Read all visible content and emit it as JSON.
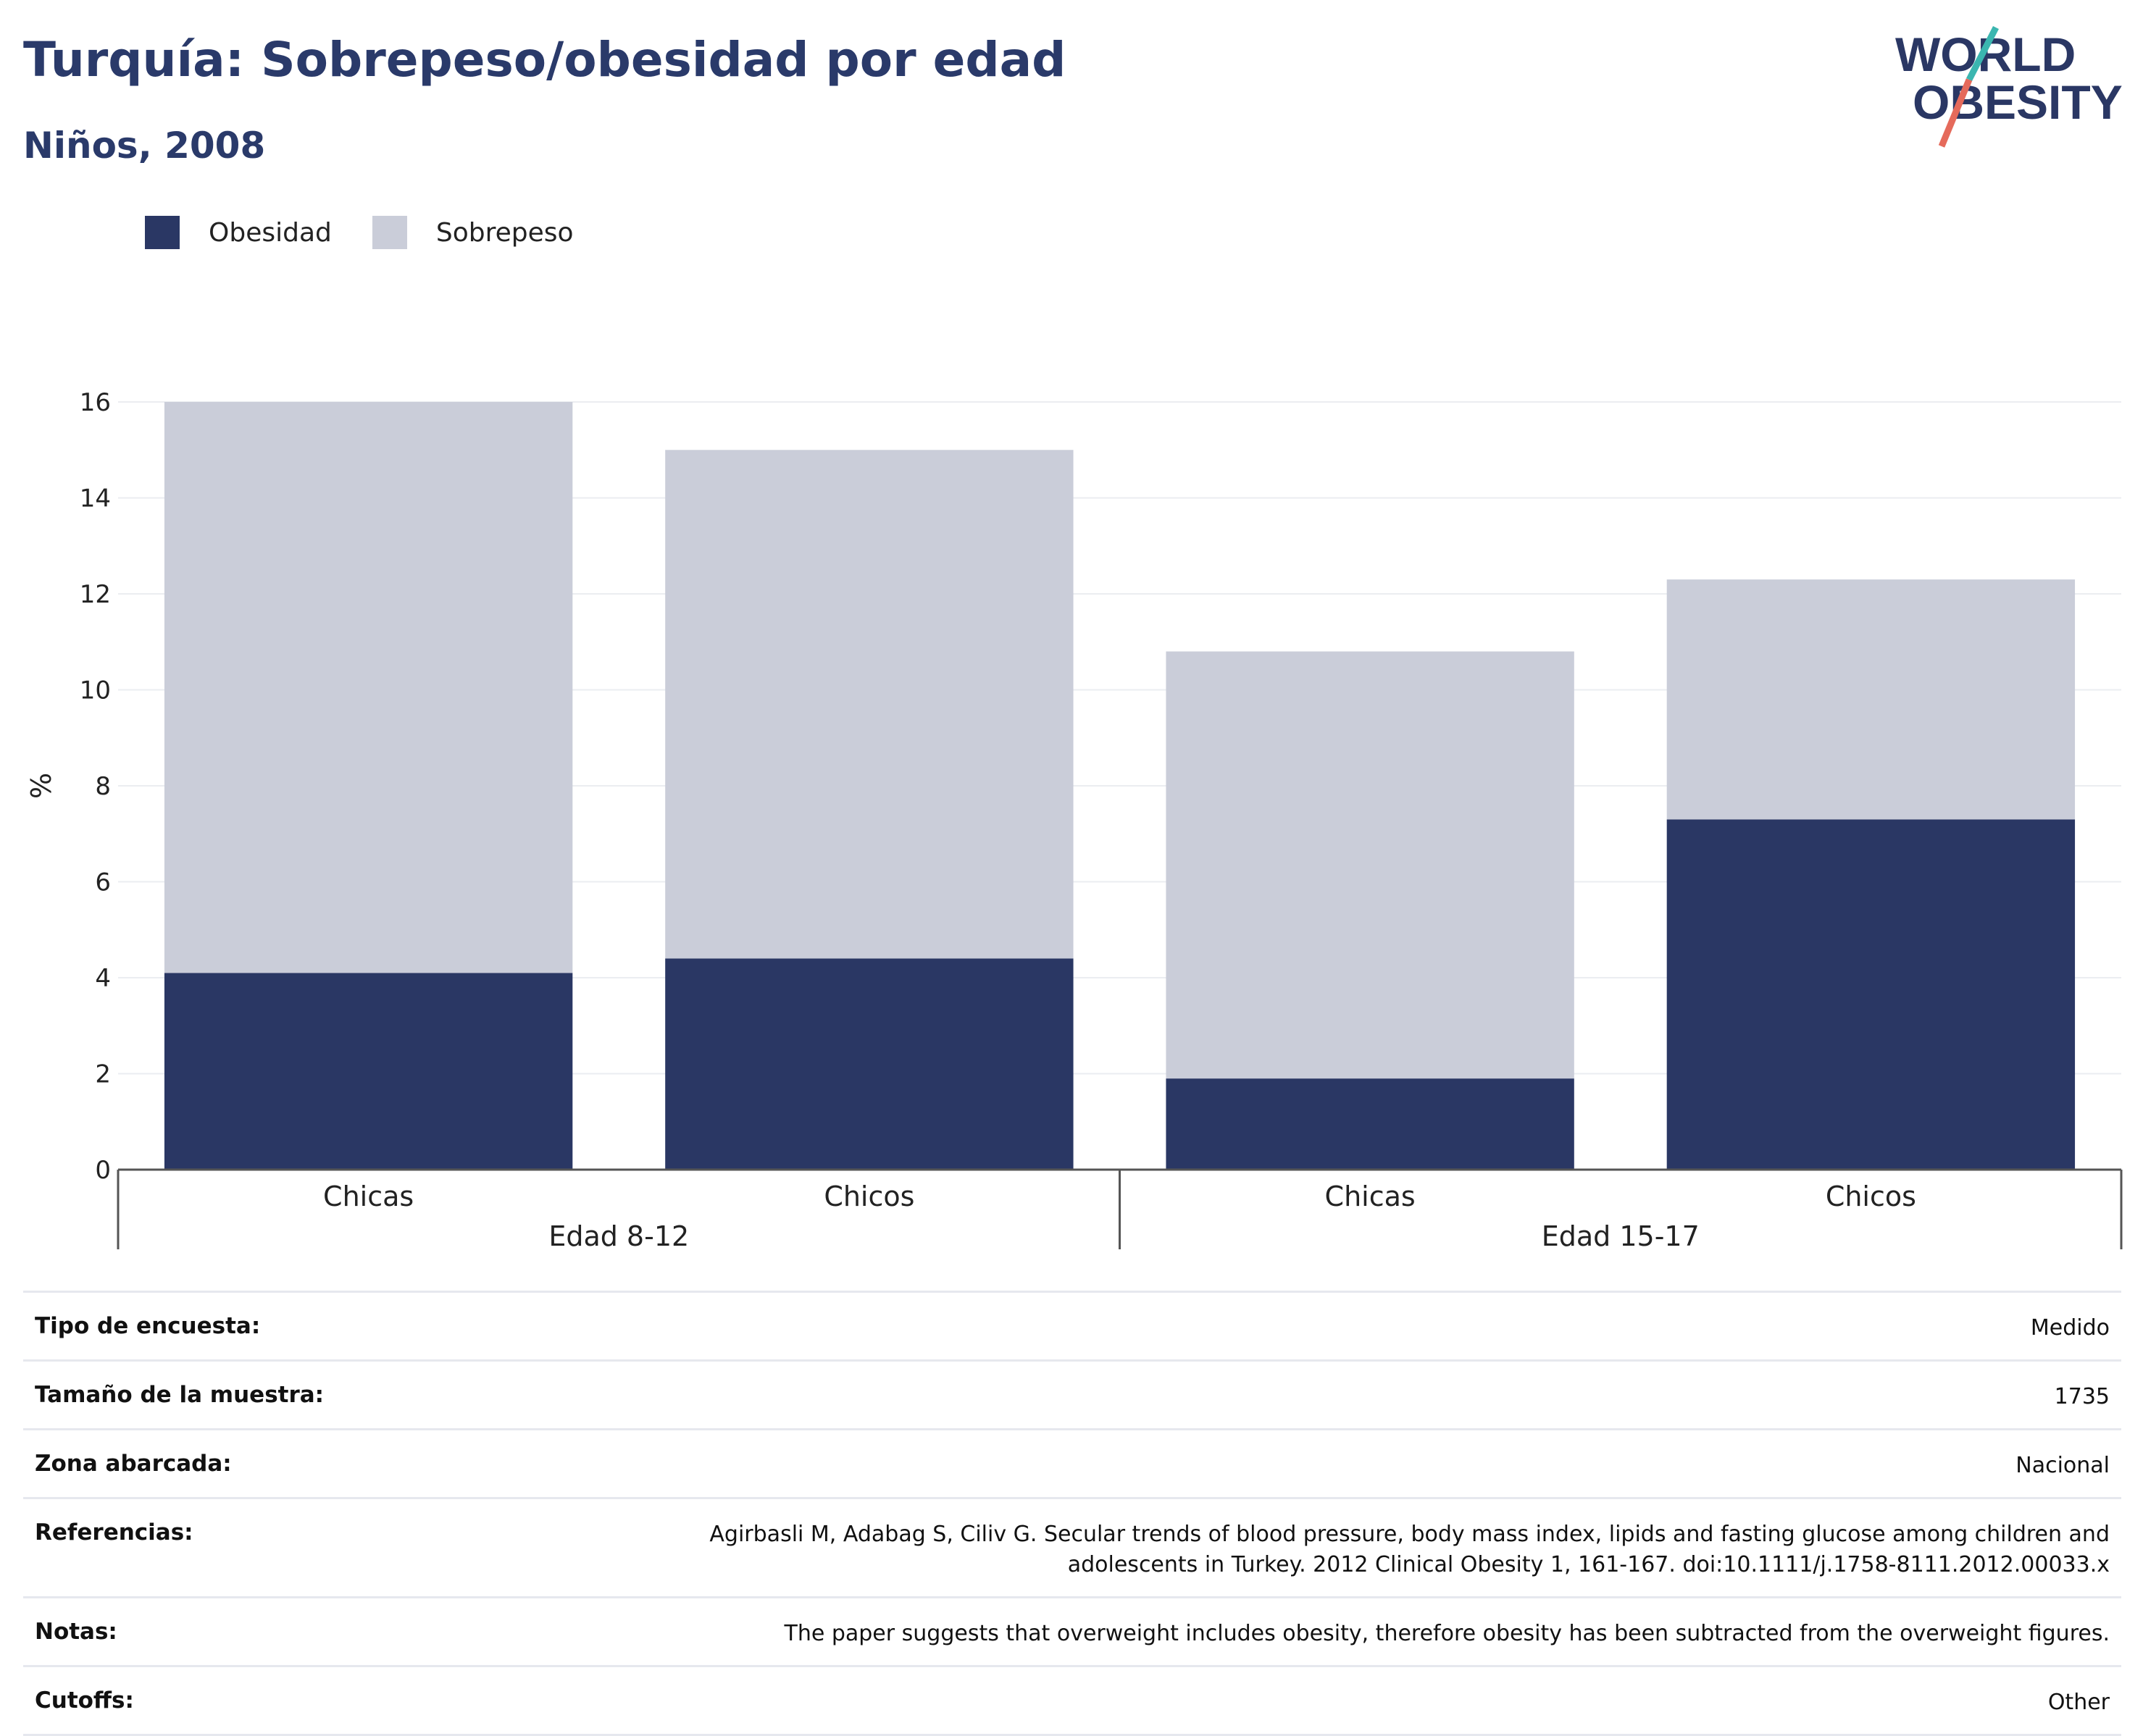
{
  "header": {
    "title": "Turquía: Sobrepeso/obesidad por edad",
    "subtitle": "Niños, 2008",
    "logo_line1": "WORLD",
    "logo_line2": "OBESITY"
  },
  "legend": {
    "items": [
      {
        "label": "Obesidad",
        "color": "#2a3764"
      },
      {
        "label": "Sobrepeso",
        "color": "#cacdd9"
      }
    ]
  },
  "chart_data": {
    "type": "bar",
    "stacked": true,
    "ylabel": "%",
    "ylim": [
      0,
      16
    ],
    "yticks": [
      0,
      2,
      4,
      6,
      8,
      10,
      12,
      14,
      16
    ],
    "grid": true,
    "legend_position": "top-left",
    "groups": [
      {
        "label": "Edad 8-12",
        "categories": [
          "Chicas",
          "Chicos"
        ]
      },
      {
        "label": "Edad 15-17",
        "categories": [
          "Chicas",
          "Chicos"
        ]
      }
    ],
    "categories": [
      "Chicas",
      "Chicos",
      "Chicas",
      "Chicos"
    ],
    "series": [
      {
        "name": "Obesidad",
        "color": "#2a3764",
        "values": [
          4.1,
          4.4,
          1.9,
          7.3
        ]
      },
      {
        "name": "Sobrepeso",
        "color": "#cacdd9",
        "values": [
          11.9,
          10.6,
          8.9,
          5.0
        ]
      }
    ]
  },
  "details": [
    {
      "label": "Tipo de encuesta:",
      "value": "Medido"
    },
    {
      "label": "Tamaño de la muestra:",
      "value": "1735"
    },
    {
      "label": "Zona abarcada:",
      "value": "Nacional"
    },
    {
      "label": "Referencias:",
      "value": "Agirbasli M, Adabag S, Ciliv G. Secular trends of blood pressure, body mass index, lipids and fasting glucose among children and adolescents in Turkey. 2012 Clinical Obesity 1, 161-167. doi:10.1111/j.1758-8111.2012.00033.x"
    },
    {
      "label": "Notas:",
      "value": "The paper suggests that overweight includes obesity, therefore obesity has been subtracted from the overweight figures."
    },
    {
      "label": "Cutoffs:",
      "value": "Other"
    }
  ]
}
